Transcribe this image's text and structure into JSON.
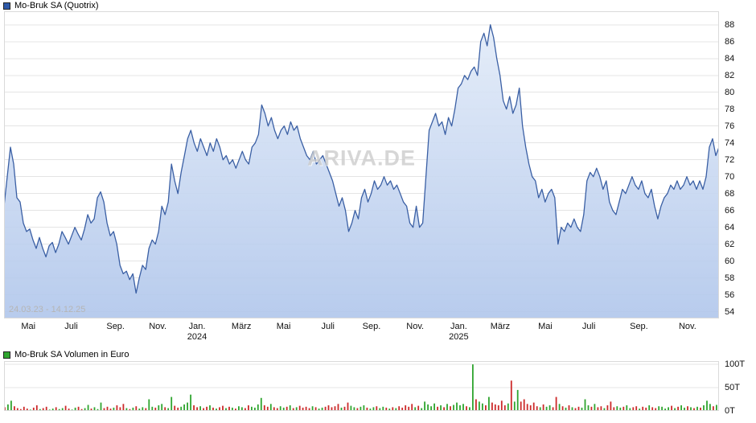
{
  "price_section": {
    "legend_label": "Mo-Bruk SA (Quotrix)",
    "legend_color": "#2e59a8",
    "date_range": "24.03.23 - 14.12.25",
    "watermark": "ARIVA.DE"
  },
  "volume_section": {
    "legend_label": "Mo-Bruk SA Volumen in Euro",
    "legend_color": "#2fa52f"
  },
  "chart_data": [
    {
      "type": "area",
      "title": "Mo-Bruk SA (Quotrix)",
      "xlabel": "",
      "ylabel": "",
      "ylim": [
        53.2,
        89.6
      ],
      "yticks": [
        88,
        86,
        84,
        82,
        80,
        78,
        76,
        74,
        72,
        70,
        68,
        66,
        64,
        62,
        60,
        58,
        56,
        54
      ],
      "grid": true,
      "legend_position": "top-left",
      "line_color": "#3a5fa4",
      "fill_top": "#e2ebf8",
      "fill_bottom": "#b0c6eb",
      "x_ticks": [
        {
          "label": "Mai",
          "pos": 0.034
        },
        {
          "label": "Juli",
          "pos": 0.094
        },
        {
          "label": "Sep.",
          "pos": 0.156
        },
        {
          "label": "Nov.",
          "pos": 0.215
        },
        {
          "label": "Jan.",
          "pos": 0.27
        },
        {
          "label": "März",
          "pos": 0.332
        },
        {
          "label": "Mai",
          "pos": 0.391
        },
        {
          "label": "Juli",
          "pos": 0.453
        },
        {
          "label": "Sep.",
          "pos": 0.514
        },
        {
          "label": "Nov.",
          "pos": 0.575
        },
        {
          "label": "Jan.",
          "pos": 0.636
        },
        {
          "label": "März",
          "pos": 0.694
        },
        {
          "label": "Mai",
          "pos": 0.757
        },
        {
          "label": "Juli",
          "pos": 0.818
        },
        {
          "label": "Sep.",
          "pos": 0.888
        },
        {
          "label": "Nov.",
          "pos": 0.956
        }
      ],
      "year_ticks": [
        {
          "label": "2024",
          "pos": 0.27
        },
        {
          "label": "2025",
          "pos": 0.636
        }
      ],
      "values": [
        66.5,
        70,
        73.5,
        71.5,
        67.5,
        67,
        64.5,
        63.5,
        63.8,
        62.5,
        61.5,
        62.8,
        61.5,
        60.5,
        61.8,
        62.2,
        61,
        62,
        63.5,
        62.8,
        62,
        63,
        64,
        63.2,
        62.5,
        63.8,
        65.5,
        64.5,
        65,
        67.5,
        68.2,
        67,
        64.5,
        63,
        63.5,
        62,
        59.5,
        58.5,
        58.8,
        57.8,
        58.5,
        56.2,
        58,
        59.5,
        59,
        61.5,
        62.5,
        62,
        63.5,
        66.5,
        65.5,
        67,
        71.5,
        69.5,
        68,
        70.5,
        72.5,
        74.5,
        75.5,
        74,
        73,
        74.5,
        73.5,
        72.5,
        74,
        73,
        74.5,
        73.5,
        72,
        72.5,
        71.5,
        72,
        71,
        72,
        73,
        72,
        71.5,
        73.5,
        74,
        75,
        78.5,
        77.5,
        76,
        77,
        75.5,
        74.5,
        75.5,
        76,
        75,
        76.5,
        75.5,
        76,
        74.5,
        73.5,
        72.5,
        72,
        73,
        71.5,
        72,
        72.5,
        71.5,
        70.5,
        69.5,
        68,
        66.5,
        67.5,
        66,
        63.5,
        64.5,
        66,
        65,
        67.5,
        68.5,
        67,
        68,
        69.5,
        68.5,
        69,
        70,
        69,
        69.5,
        68.5,
        69,
        68,
        67,
        66.5,
        64.5,
        64,
        66.5,
        64,
        64.5,
        70,
        75.5,
        76.5,
        77.5,
        76,
        76.5,
        75,
        77,
        76,
        78,
        80.5,
        81,
        82,
        81.5,
        82.5,
        83,
        82,
        86,
        87,
        85.5,
        88,
        86.5,
        84,
        82,
        79,
        78,
        79.5,
        77.5,
        78.5,
        80.5,
        76,
        73.5,
        71.5,
        70,
        69.5,
        67.5,
        68.5,
        67,
        68,
        68.5,
        67.5,
        62,
        64,
        63.5,
        64.5,
        64,
        65,
        64,
        63.5,
        65.5,
        69.5,
        70.5,
        70,
        71,
        70,
        68.5,
        69.5,
        67,
        66,
        65.5,
        67,
        68.5,
        68,
        69,
        70,
        69,
        68.5,
        69.5,
        68,
        67.5,
        68.5,
        66.5,
        65,
        66.5,
        67.5,
        68,
        69,
        68.5,
        69.5,
        68.5,
        69,
        70,
        69,
        69.5,
        68.5,
        69.5,
        68.5,
        70,
        73.5,
        74.5,
        72.5,
        73.5
      ]
    },
    {
      "type": "bar",
      "title": "Mo-Bruk SA Volumen in Euro",
      "xlabel": "",
      "ylabel": "",
      "unit": "T",
      "ylim": [
        0,
        107
      ],
      "yticks": [
        {
          "label": "100T",
          "value": 100
        },
        {
          "label": "50T",
          "value": 50
        },
        {
          "label": "0T",
          "value": 0
        }
      ],
      "up_color": "#2fa52f",
      "down_color": "#cc2a2a",
      "values": [
        8,
        14,
        22,
        10,
        6,
        4,
        9,
        5,
        3,
        7,
        12,
        4,
        6,
        9,
        3,
        5,
        8,
        4,
        6,
        11,
        5,
        3,
        7,
        9,
        4,
        6,
        13,
        5,
        8,
        4,
        18,
        6,
        9,
        5,
        7,
        12,
        8,
        15,
        6,
        4,
        7,
        10,
        5,
        8,
        6,
        25,
        9,
        7,
        12,
        15,
        8,
        6,
        30,
        11,
        7,
        9,
        14,
        18,
        35,
        12,
        8,
        10,
        6,
        9,
        12,
        7,
        5,
        8,
        11,
        6,
        9,
        7,
        5,
        10,
        8,
        6,
        12,
        9,
        7,
        14,
        28,
        12,
        9,
        15,
        8,
        6,
        10,
        7,
        9,
        12,
        6,
        8,
        11,
        7,
        9,
        6,
        10,
        8,
        5,
        7,
        9,
        12,
        8,
        10,
        15,
        7,
        9,
        18,
        11,
        8,
        6,
        9,
        12,
        7,
        5,
        8,
        10,
        6,
        9,
        7,
        5,
        8,
        6,
        10,
        7,
        12,
        9,
        15,
        8,
        11,
        6,
        20,
        14,
        10,
        16,
        9,
        12,
        8,
        15,
        10,
        13,
        18,
        12,
        15,
        10,
        8,
        100,
        25,
        20,
        16,
        12,
        30,
        18,
        14,
        12,
        22,
        12,
        16,
        65,
        20,
        45,
        20,
        25,
        15,
        12,
        18,
        10,
        8,
        14,
        9,
        12,
        8,
        30,
        15,
        10,
        7,
        12,
        8,
        6,
        9,
        7,
        25,
        12,
        9,
        15,
        8,
        10,
        6,
        12,
        20,
        8,
        10,
        7,
        9,
        12,
        6,
        8,
        10,
        5,
        9,
        7,
        12,
        8,
        6,
        10,
        9,
        5,
        8,
        11,
        6,
        9,
        12,
        7,
        10,
        8,
        6,
        9,
        7,
        12,
        22,
        15,
        10,
        13
      ]
    }
  ]
}
